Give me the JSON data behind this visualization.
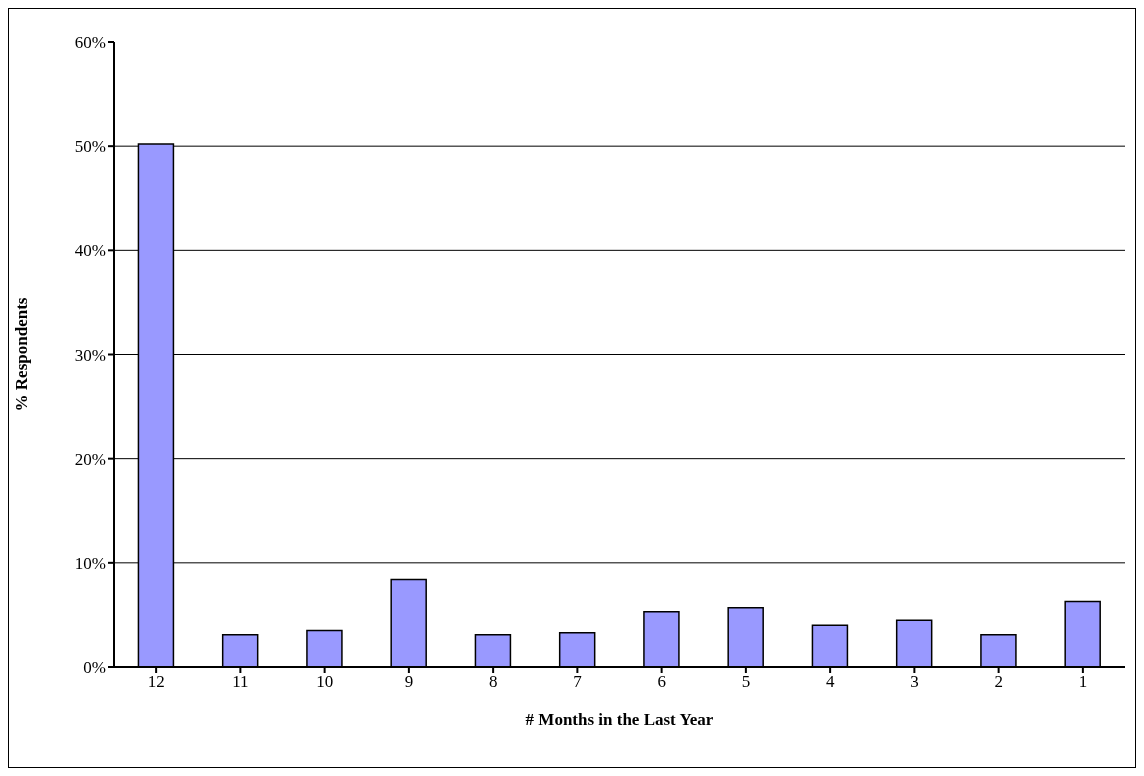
{
  "chart_data": {
    "type": "bar",
    "xlabel": "# Months in the Last Year",
    "ylabel": "% Respondents",
    "categories": [
      "12",
      "11",
      "10",
      "9",
      "8",
      "7",
      "6",
      "5",
      "4",
      "3",
      "2",
      "1"
    ],
    "values": [
      50.2,
      3.1,
      3.5,
      8.4,
      3.1,
      3.3,
      5.3,
      5.7,
      4.0,
      4.5,
      3.1,
      6.3
    ],
    "color": "#9999ff",
    "ylim": [
      0,
      60
    ],
    "yticks": [
      {
        "value": 0,
        "label": "0%"
      },
      {
        "value": 10,
        "label": "10%"
      },
      {
        "value": 20,
        "label": "20%"
      },
      {
        "value": 30,
        "label": "30%"
      },
      {
        "value": 40,
        "label": "40%"
      },
      {
        "value": 50,
        "label": "50%"
      },
      {
        "value": 60,
        "label": "60%"
      }
    ],
    "grid": "y",
    "legend": false
  }
}
